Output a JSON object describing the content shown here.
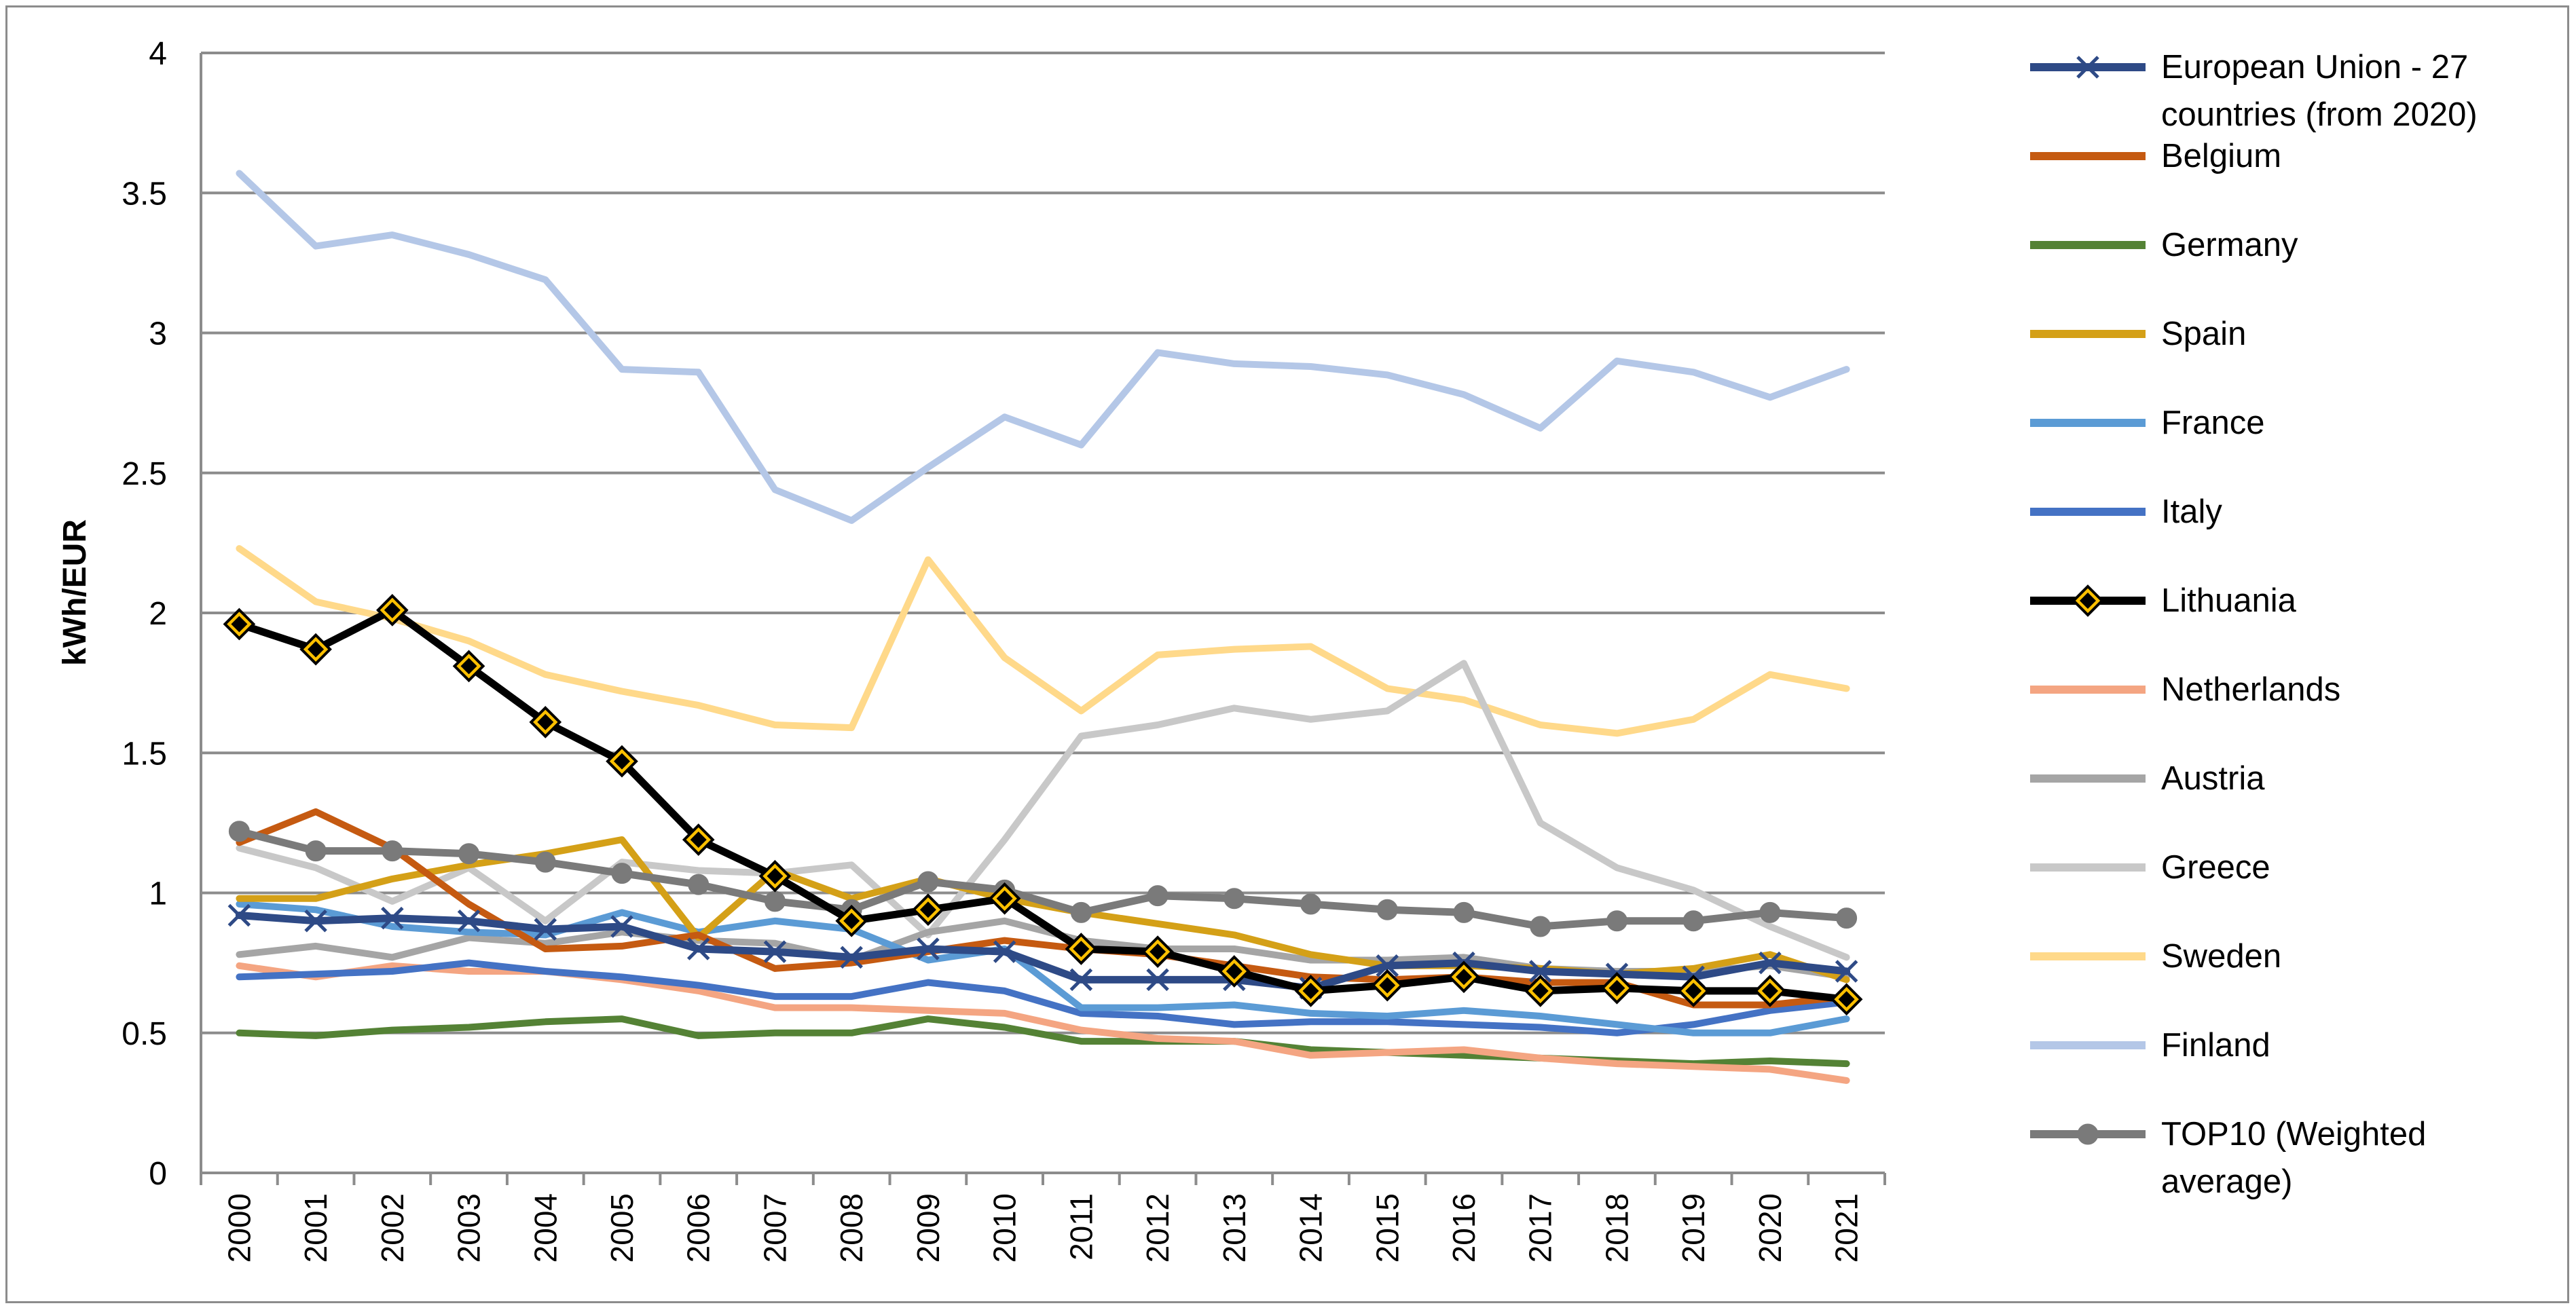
{
  "chart_data": {
    "type": "line",
    "title": "",
    "xlabel": "",
    "ylabel": "kWh/EUR",
    "ylim": [
      0,
      4
    ],
    "y_ticks": [
      "0",
      "0.5",
      "1",
      "1.5",
      "2",
      "2.5",
      "3",
      "3.5",
      "4"
    ],
    "grid": "horizontal",
    "legend_position": "right",
    "categories": [
      "2000",
      "2001",
      "2002",
      "2003",
      "2004",
      "2005",
      "2006",
      "2007",
      "2008",
      "2009",
      "2010",
      "2011",
      "2012",
      "2013",
      "2014",
      "2015",
      "2016",
      "2017",
      "2018",
      "2019",
      "2020",
      "2021"
    ],
    "series": [
      {
        "name": "Finland",
        "color": "#b4c7e7",
        "marker": "none",
        "values": [
          3.57,
          3.31,
          3.35,
          3.28,
          3.19,
          2.87,
          2.86,
          2.44,
          2.33,
          2.52,
          2.7,
          2.6,
          2.93,
          2.89,
          2.88,
          2.85,
          2.78,
          2.66,
          2.9,
          2.86,
          2.77,
          2.87
        ]
      },
      {
        "name": "Sweden",
        "color": "#ffd98a",
        "marker": "none",
        "values": [
          2.23,
          2.04,
          1.98,
          1.9,
          1.78,
          1.72,
          1.67,
          1.6,
          1.59,
          2.19,
          1.84,
          1.65,
          1.85,
          1.87,
          1.88,
          1.73,
          1.69,
          1.6,
          1.57,
          1.62,
          1.78,
          1.73
        ]
      },
      {
        "name": "Greece",
        "color": "#c8c8c8",
        "marker": "none",
        "values": [
          1.16,
          1.09,
          0.97,
          1.09,
          0.9,
          1.11,
          1.08,
          1.07,
          1.1,
          0.85,
          1.19,
          1.56,
          1.6,
          1.66,
          1.62,
          1.65,
          1.82,
          1.25,
          1.09,
          1.01,
          0.88,
          0.77
        ]
      },
      {
        "name": "Austria",
        "color": "#a5a5a5",
        "marker": "none",
        "values": [
          0.78,
          0.81,
          0.77,
          0.84,
          0.82,
          0.86,
          0.83,
          0.82,
          0.76,
          0.86,
          0.9,
          0.83,
          0.8,
          0.8,
          0.76,
          0.76,
          0.77,
          0.73,
          0.72,
          0.72,
          0.74,
          0.7
        ]
      },
      {
        "name": "Germany",
        "color": "#548235",
        "marker": "none",
        "values": [
          0.5,
          0.49,
          0.51,
          0.52,
          0.54,
          0.55,
          0.49,
          0.5,
          0.5,
          0.55,
          0.52,
          0.47,
          0.47,
          0.47,
          0.44,
          0.43,
          0.42,
          0.41,
          0.4,
          0.39,
          0.4,
          0.39
        ]
      },
      {
        "name": "Netherlands",
        "color": "#f4a582",
        "marker": "none",
        "values": [
          0.74,
          0.7,
          0.74,
          0.72,
          0.72,
          0.69,
          0.65,
          0.59,
          0.59,
          0.58,
          0.57,
          0.51,
          0.48,
          0.47,
          0.42,
          0.43,
          0.44,
          0.41,
          0.39,
          0.38,
          0.37,
          0.33
        ]
      },
      {
        "name": "Italy",
        "color": "#4472c4",
        "marker": "none",
        "values": [
          0.7,
          0.71,
          0.72,
          0.75,
          0.72,
          0.7,
          0.67,
          0.63,
          0.63,
          0.68,
          0.65,
          0.57,
          0.56,
          0.53,
          0.54,
          0.54,
          0.53,
          0.52,
          0.5,
          0.53,
          0.58,
          0.61
        ]
      },
      {
        "name": "France",
        "color": "#5b9bd5",
        "marker": "none",
        "values": [
          0.96,
          0.94,
          0.88,
          0.86,
          0.85,
          0.93,
          0.86,
          0.9,
          0.87,
          0.76,
          0.8,
          0.59,
          0.59,
          0.6,
          0.57,
          0.56,
          0.58,
          0.56,
          0.53,
          0.5,
          0.5,
          0.55
        ]
      },
      {
        "name": "Spain",
        "color": "#d4a017",
        "marker": "none",
        "values": [
          0.98,
          0.98,
          1.05,
          1.1,
          1.14,
          1.19,
          0.84,
          1.08,
          0.98,
          1.05,
          0.98,
          0.93,
          0.89,
          0.85,
          0.78,
          0.74,
          0.74,
          0.73,
          0.71,
          0.73,
          0.78,
          0.69
        ]
      },
      {
        "name": "Belgium",
        "color": "#c55a11",
        "marker": "none",
        "values": [
          1.18,
          1.29,
          1.16,
          0.96,
          0.8,
          0.81,
          0.85,
          0.73,
          0.75,
          0.79,
          0.83,
          0.8,
          0.78,
          0.74,
          0.7,
          0.69,
          0.7,
          0.68,
          0.68,
          0.6,
          0.6,
          0.63
        ]
      },
      {
        "name": "European Union - 27 countries (from 2020)",
        "color": "#2e4a86",
        "marker": "x",
        "values": [
          0.92,
          0.9,
          0.91,
          0.9,
          0.87,
          0.88,
          0.8,
          0.79,
          0.77,
          0.8,
          0.79,
          0.69,
          0.69,
          0.69,
          0.66,
          0.74,
          0.75,
          0.72,
          0.71,
          0.7,
          0.75,
          0.72
        ]
      },
      {
        "name": "TOP10 (Weighted average)",
        "color": "#7a7a7a",
        "marker": "circle",
        "values": [
          1.22,
          1.15,
          1.15,
          1.14,
          1.11,
          1.07,
          1.03,
          0.97,
          0.94,
          1.04,
          1.01,
          0.93,
          0.99,
          0.98,
          0.96,
          0.94,
          0.93,
          0.88,
          0.9,
          0.9,
          0.93,
          0.91
        ]
      },
      {
        "name": "Lithuania",
        "color": "#000000",
        "marker": "diamond",
        "values": [
          1.96,
          1.87,
          2.01,
          1.81,
          1.61,
          1.47,
          1.19,
          1.06,
          0.9,
          0.94,
          0.98,
          0.8,
          0.79,
          0.72,
          0.65,
          0.67,
          0.7,
          0.65,
          0.66,
          0.65,
          0.65,
          0.62
        ]
      }
    ],
    "legend_order": [
      "European Union - 27 countries (from 2020)",
      "Belgium",
      "Germany",
      "Spain",
      "France",
      "Italy",
      "Lithuania",
      "Netherlands",
      "Austria",
      "Greece",
      "Sweden",
      "Finland",
      "TOP10 (Weighted average)"
    ]
  }
}
